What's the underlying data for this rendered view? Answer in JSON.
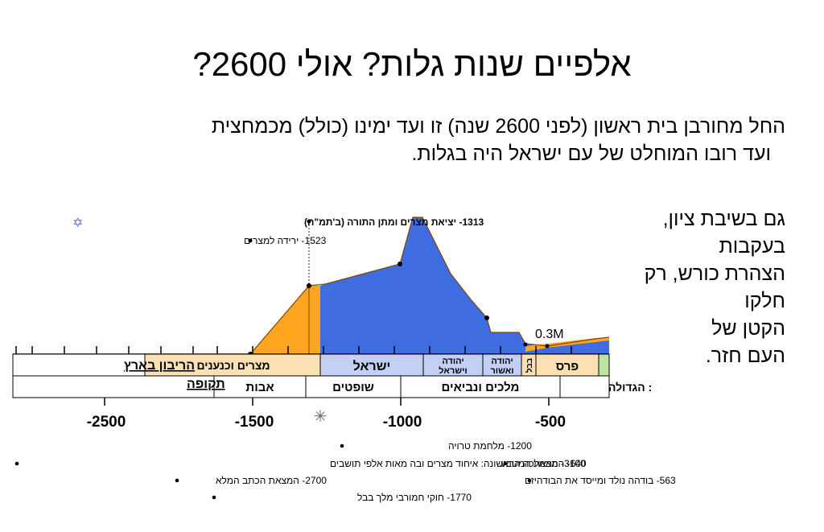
{
  "title": "אלפיים שנות גלות? אולי 2600?",
  "intro": {
    "line1": "החל מחורבן בית ראשון (לפני 2600 שנה) זו ועד ימינו (כולל) מכמחצית",
    "line2": "ועד רובו המוחלט של עם ישראל היה בגלות."
  },
  "side_text": {
    "line1": "גם בשיבת ציון, בעקבות",
    "line2": "הצהרת כורש, רק חלקו",
    "line3": "הקטן של",
    "line4": "העם חזר."
  },
  "chart": {
    "label_sovereignty": "הריבון בארץ",
    "label_period": "תקופה",
    "sovereignty_cells": {
      "egypt_canaan": "מצרים וכנענים",
      "israel": "ישראל",
      "judah_israel_l1": "יהודה",
      "judah_israel_l2": "וישראל",
      "judah_assyria_l1": "יהודה",
      "judah_assyria_l2": "ואשור",
      "babylon": "בבל",
      "persia": "פרס"
    },
    "period_cells": {
      "fathers": "אבות",
      "judges": "שופטים",
      "kings_prophets": "מלכים ונביאים",
      "great": ": הגדולה"
    },
    "axis_ticks": [
      "-2500",
      "-1500",
      "-1000",
      "-500"
    ],
    "population_label": "0.3M",
    "star_of_david": "✡",
    "snowflake": "✳",
    "events_top": [
      "1313- יציאת מצרים ומתן התורה (ב'תמ\"ח)",
      "1523- ירידה למצרים"
    ],
    "events_bottom": [
      "1200- מלחמת טרויה",
      "3100- הממלכה הראשונה: איחוד מצרים ובה מאות אלפי תושבים",
      "640- המצאת המטבע",
      "2700- המצאת הכתב המלא",
      "563- בודהה נולד ומייסד את הבודהיזם",
      "1770- חוקי חמורבי מלך בבל"
    ],
    "colors": {
      "orange": "#FFA51F",
      "blue": "#3F6CE0",
      "egypt_canaan_bg": "#FBE0B4",
      "israel_bg": "#C3CFF3",
      "persia_bg": "#FBE0B4",
      "green_bg": "#BFE3A5"
    }
  }
}
